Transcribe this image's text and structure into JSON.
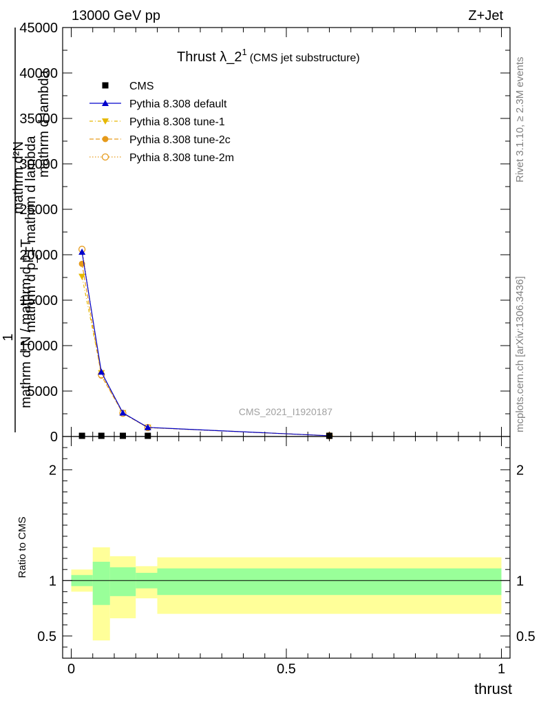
{
  "header": {
    "left": "13000 GeV pp",
    "right": "Z+Jet"
  },
  "side_labels": {
    "rivet": "Rivet 3.1.10, ≥ 2.3M events",
    "mcplots": "mcplots.cern.ch [arXiv:1306.3436]"
  },
  "colors": {
    "cms": "#000000",
    "default": "#0000cc",
    "tune1": "#e6b800",
    "tune2c": "#e69a1a",
    "tune2m": "#e69a1a",
    "band_inner": "#99ff99",
    "band_outer": "#ffff99"
  },
  "chart_data": [
    {
      "type": "line",
      "title_main": "Thrust λ_2",
      "title_sup": "1",
      "title_sub": "(CMS jet substructure)",
      "watermark": "CMS_2021_I1920187",
      "ylabel_num": "mathrm d²N",
      "ylabel_num2": "mathrm d lambda",
      "ylabel_den": "mathrm d p_T mathrm d lambda",
      "ylabel_prefix": "1",
      "ylabel_den2": "mathrm d N / mathrm d p_T",
      "xlim": [
        -0.02,
        1.02
      ],
      "ylim": [
        0,
        45000
      ],
      "yticks": [
        {
          "v": 0,
          "label": "0"
        },
        {
          "v": 5000,
          "label": "5000"
        },
        {
          "v": 10000,
          "label": "10000"
        },
        {
          "v": 15000,
          "label": "15000"
        },
        {
          "v": 20000,
          "label": "20000"
        },
        {
          "v": 25000,
          "label": "25000"
        },
        {
          "v": 30000,
          "label": "30000"
        },
        {
          "v": 35000,
          "label": "35000"
        },
        {
          "v": 40000,
          "label": "40000"
        },
        {
          "v": 45000,
          "label": "45000"
        }
      ],
      "legend": [
        {
          "key": "cms",
          "label": "CMS"
        },
        {
          "key": "default",
          "label": "Pythia 8.308 default"
        },
        {
          "key": "tune1",
          "label": "Pythia 8.308 tune-1"
        },
        {
          "key": "tune2c",
          "label": "Pythia 8.308 tune-2c"
        },
        {
          "key": "tune2m",
          "label": "Pythia 8.308 tune-2m"
        }
      ],
      "cms_points": [
        {
          "x": 0.025,
          "y": 0
        },
        {
          "x": 0.07,
          "y": 0
        },
        {
          "x": 0.12,
          "y": 0
        },
        {
          "x": 0.178,
          "y": 0
        },
        {
          "x": 0.6,
          "y": 0
        }
      ],
      "series": [
        {
          "key": "default",
          "name": "Pythia 8.308 default",
          "x": [
            0.025,
            0.07,
            0.12,
            0.178,
            0.6
          ],
          "y": [
            20300,
            7100,
            2600,
            1000,
            80
          ]
        },
        {
          "key": "tune1",
          "name": "Pythia 8.308 tune-1",
          "x": [
            0.025,
            0.07,
            0.12,
            0.178,
            0.6
          ],
          "y": [
            17600,
            7000,
            2600,
            1000,
            80
          ]
        },
        {
          "key": "tune2c",
          "name": "Pythia 8.308 tune-2c",
          "x": [
            0.025,
            0.07,
            0.12,
            0.178,
            0.6
          ],
          "y": [
            19000,
            6700,
            2550,
            980,
            80
          ]
        },
        {
          "key": "tune2m",
          "name": "Pythia 8.308 tune-2m",
          "x": [
            0.025,
            0.07,
            0.12,
            0.178,
            0.6
          ],
          "y": [
            20600,
            6800,
            2550,
            980,
            80
          ]
        }
      ]
    },
    {
      "type": "area",
      "ylabel": "Ratio to CMS",
      "xlabel": "thrust",
      "xlim": [
        -0.02,
        1.02
      ],
      "ylim": [
        0.3,
        2.3
      ],
      "xticks": [
        {
          "v": 0,
          "label": "0"
        },
        {
          "v": 0.5,
          "label": "0.5"
        },
        {
          "v": 1,
          "label": "1"
        }
      ],
      "yticks": [
        {
          "v": 0.5,
          "label": "0.5"
        },
        {
          "v": 1,
          "label": "1"
        },
        {
          "v": 2,
          "label": "2"
        }
      ],
      "bins": [
        {
          "x0": 0.0,
          "x1": 0.05,
          "inner": [
            0.95,
            1.05
          ],
          "outer": [
            0.9,
            1.1
          ]
        },
        {
          "x0": 0.05,
          "x1": 0.09,
          "inner": [
            0.78,
            1.17
          ],
          "outer": [
            0.46,
            1.3
          ]
        },
        {
          "x0": 0.09,
          "x1": 0.15,
          "inner": [
            0.86,
            1.12
          ],
          "outer": [
            0.66,
            1.22
          ]
        },
        {
          "x0": 0.15,
          "x1": 0.2,
          "inner": [
            0.93,
            1.07
          ],
          "outer": [
            0.84,
            1.13
          ]
        },
        {
          "x0": 0.2,
          "x1": 1.0,
          "inner": [
            0.87,
            1.11
          ],
          "outer": [
            0.7,
            1.21
          ]
        }
      ]
    }
  ]
}
